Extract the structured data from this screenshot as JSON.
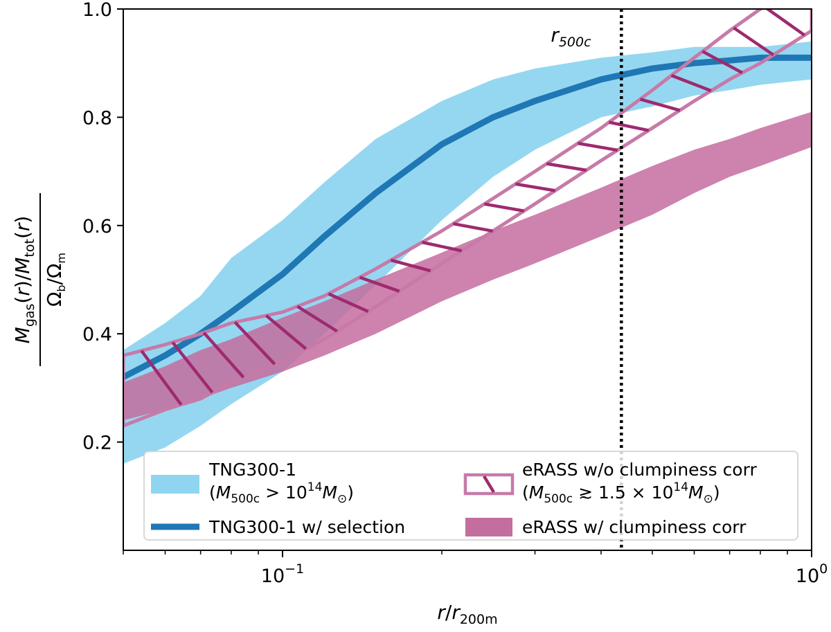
{
  "chart_data": {
    "type": "area",
    "x_scale": "log",
    "xlim": [
      0.05,
      1.0
    ],
    "ylim": [
      0.0,
      1.0
    ],
    "grid": false,
    "xticks": [
      {
        "value": 0.1,
        "base": "10",
        "exp": "−1"
      },
      {
        "value": 1.0,
        "base": "10",
        "exp": "0"
      }
    ],
    "yticks": [
      {
        "value": 0.2,
        "label": "0.2"
      },
      {
        "value": 0.4,
        "label": "0.4"
      },
      {
        "value": 0.6,
        "label": "0.6"
      },
      {
        "value": 0.8,
        "label": "0.8"
      },
      {
        "value": 1.0,
        "label": "1.0"
      }
    ],
    "xlabel": {
      "base": "r/r",
      "sub": "200m"
    },
    "ylabel": {
      "num": "M_gas(r)/M_tot(r)",
      "den": "Ω_b/Ω_m"
    },
    "vline": {
      "x": 0.437,
      "label_base": "r",
      "label_sub": "500c"
    },
    "legend_position": "lower-center",
    "series": [
      {
        "name": "TNG300-1 (M500c > 10^14 M☉)",
        "kind": "band",
        "color": "#8fd5f0",
        "x": [
          0.05,
          0.06,
          0.07,
          0.08,
          0.1,
          0.12,
          0.15,
          0.2,
          0.25,
          0.3,
          0.4,
          0.5,
          0.6,
          0.7,
          0.8,
          1.0
        ],
        "lower": [
          0.16,
          0.19,
          0.23,
          0.27,
          0.33,
          0.4,
          0.49,
          0.61,
          0.69,
          0.74,
          0.8,
          0.82,
          0.84,
          0.85,
          0.86,
          0.87
        ],
        "upper": [
          0.37,
          0.42,
          0.47,
          0.54,
          0.61,
          0.68,
          0.76,
          0.83,
          0.87,
          0.89,
          0.91,
          0.92,
          0.93,
          0.93,
          0.93,
          0.94
        ]
      },
      {
        "name": "TNG300-1 w/ selection",
        "kind": "line",
        "color": "#1f77b4",
        "x": [
          0.05,
          0.06,
          0.07,
          0.08,
          0.1,
          0.12,
          0.15,
          0.2,
          0.25,
          0.3,
          0.4,
          0.5,
          0.6,
          0.7,
          0.8,
          1.0
        ],
        "y": [
          0.32,
          0.36,
          0.4,
          0.44,
          0.51,
          0.58,
          0.66,
          0.75,
          0.8,
          0.83,
          0.87,
          0.89,
          0.9,
          0.905,
          0.91,
          0.91
        ]
      },
      {
        "name": "eRASS w/o clumpiness corr (M500c ≳ 1.5 × 10^14 M☉)",
        "kind": "hatched-band",
        "color": "#c77aa8",
        "hatch_color": "#9e2a6f",
        "x": [
          0.05,
          0.06,
          0.07,
          0.08,
          0.1,
          0.12,
          0.15,
          0.2,
          0.25,
          0.3,
          0.4,
          0.5,
          0.6,
          0.7,
          0.8,
          1.0
        ],
        "lower": [
          0.23,
          0.26,
          0.28,
          0.31,
          0.35,
          0.39,
          0.45,
          0.53,
          0.59,
          0.64,
          0.72,
          0.78,
          0.83,
          0.87,
          0.9,
          0.96
        ],
        "upper": [
          0.36,
          0.38,
          0.4,
          0.42,
          0.44,
          0.47,
          0.52,
          0.59,
          0.65,
          0.7,
          0.78,
          0.85,
          0.91,
          0.96,
          1.0,
          1.04
        ]
      },
      {
        "name": "eRASS w/ clumpiness corr",
        "kind": "band",
        "color": "#c46d9f",
        "x": [
          0.05,
          0.06,
          0.07,
          0.08,
          0.1,
          0.12,
          0.15,
          0.2,
          0.25,
          0.3,
          0.4,
          0.5,
          0.6,
          0.7,
          0.8,
          1.0
        ],
        "lower": [
          0.24,
          0.26,
          0.28,
          0.3,
          0.33,
          0.36,
          0.4,
          0.46,
          0.5,
          0.53,
          0.58,
          0.62,
          0.66,
          0.69,
          0.71,
          0.745
        ],
        "upper": [
          0.31,
          0.34,
          0.37,
          0.39,
          0.43,
          0.46,
          0.5,
          0.55,
          0.59,
          0.62,
          0.67,
          0.71,
          0.74,
          0.76,
          0.78,
          0.81
        ]
      }
    ],
    "legend": [
      {
        "line1": "TNG300-1",
        "line2_prefix": "(",
        "line2_sym": "M",
        "line2_sub": "500c",
        "line2_mid": " > 10",
        "line2_sup": "14",
        "line2_sym2": "M",
        "line2_sub2": "⊙",
        "line2_suffix": ")"
      },
      {
        "line1": "TNG300-1 w/ selection"
      },
      {
        "line1": "eRASS w/o clumpiness corr",
        "line2_prefix": "(",
        "line2_sym": "M",
        "line2_sub": "500c",
        "line2_mid": " ≳ 1.5 × 10",
        "line2_sup": "14",
        "line2_sym2": "M",
        "line2_sub2": "⊙",
        "line2_suffix": ")"
      },
      {
        "line1": "eRASS w/ clumpiness corr"
      }
    ]
  }
}
